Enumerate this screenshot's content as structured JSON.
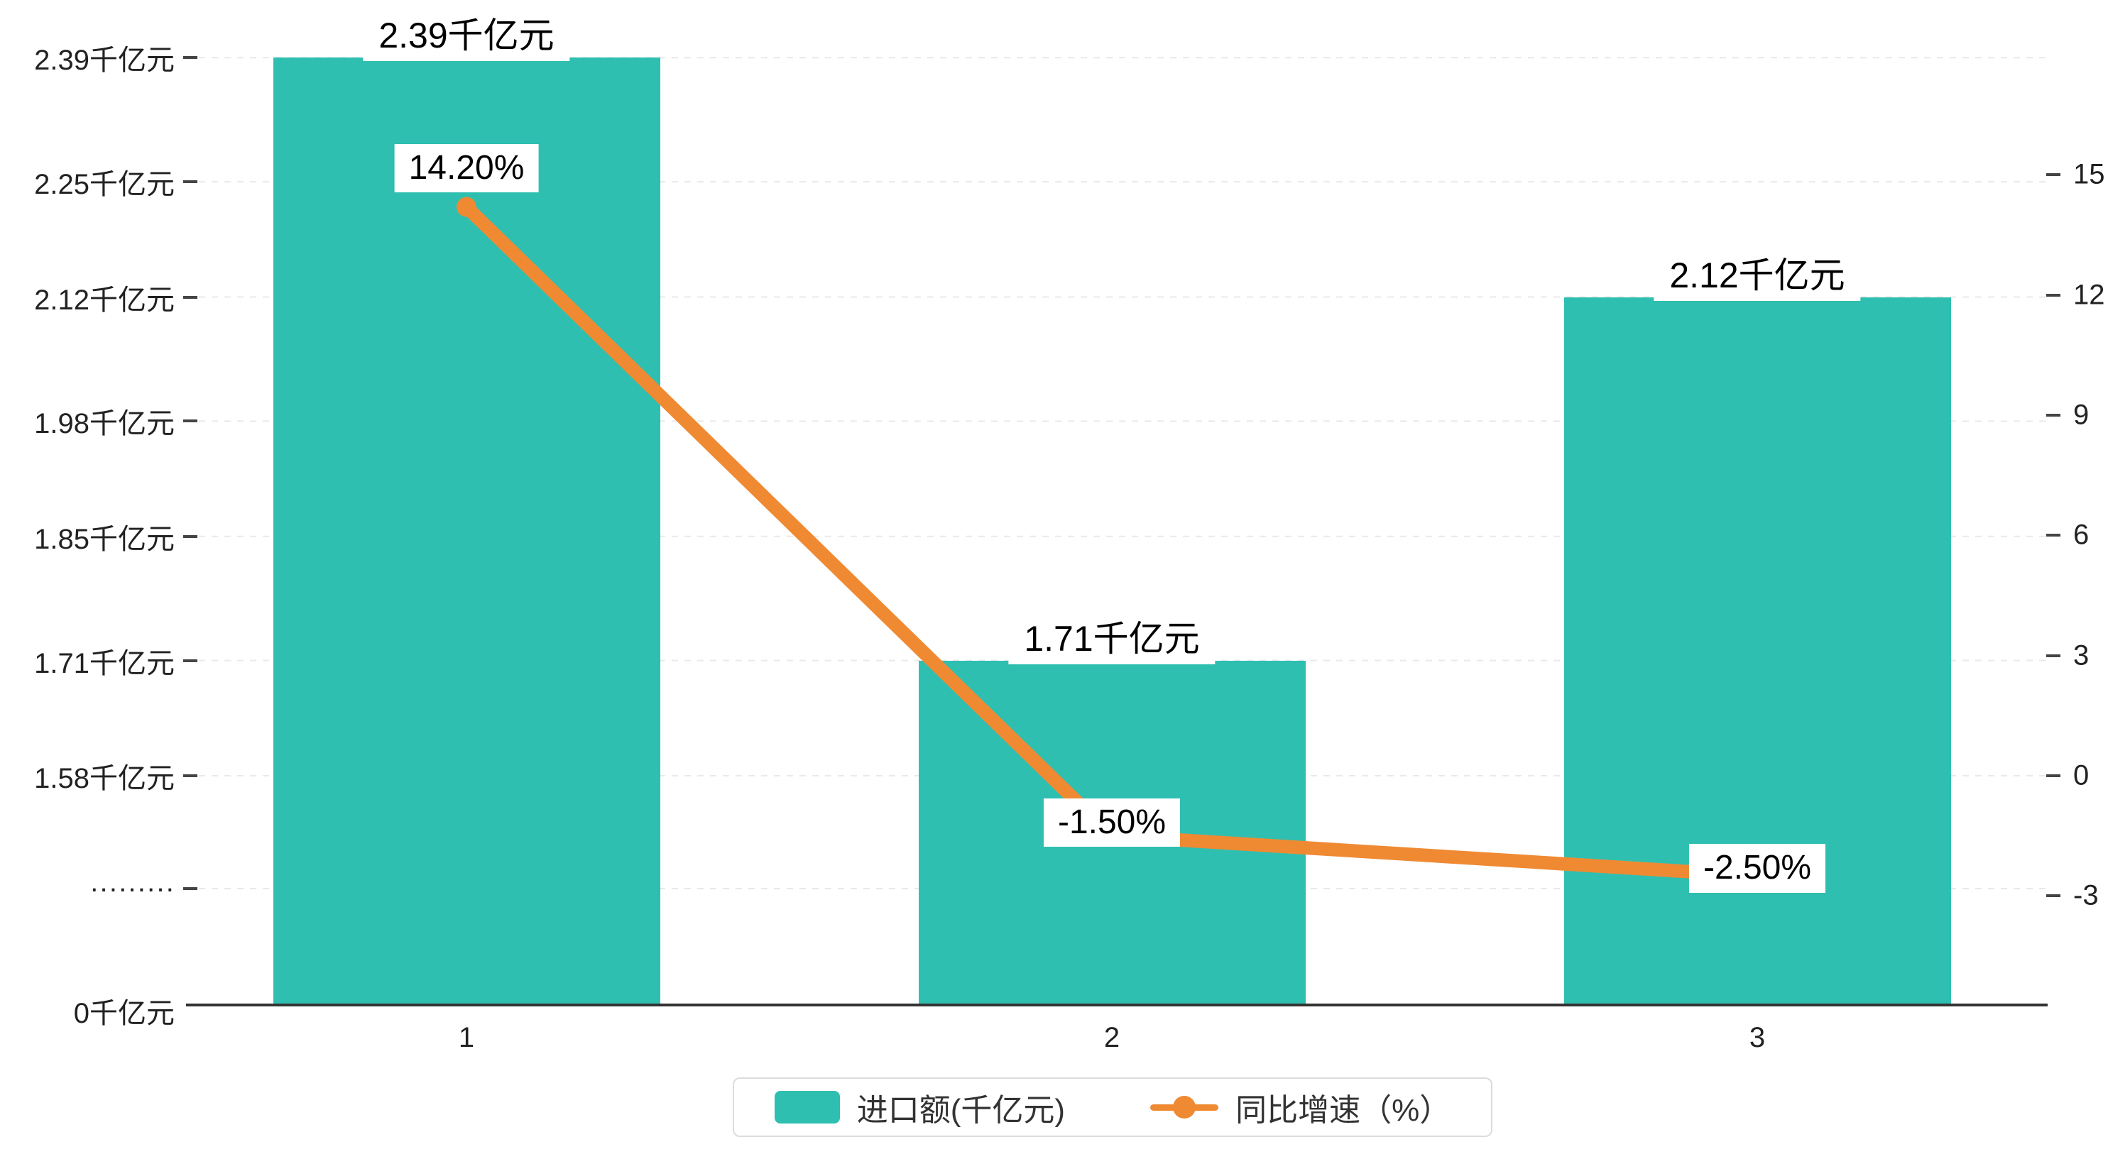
{
  "chart_data": {
    "type": "bar+line",
    "categories": [
      "1",
      "2",
      "3"
    ],
    "series": [
      {
        "name": "进口额(千亿元)",
        "type": "bar",
        "axis": "left",
        "values": [
          2.39,
          1.71,
          2.12
        ],
        "labels": [
          "2.39千亿元",
          "1.71千亿元",
          "2.12千亿元"
        ],
        "color": "#2fbfb0"
      },
      {
        "name": "同比增速（%）",
        "type": "line",
        "axis": "right",
        "values": [
          14.2,
          -1.5,
          -2.5
        ],
        "labels": [
          "14.20%",
          "-1.50%",
          "-2.50%"
        ],
        "color": "#ef8a33"
      }
    ],
    "left_axis": {
      "tick_labels": [
        "2.39千亿元",
        "2.25千亿元",
        "2.12千亿元",
        "1.98千亿元",
        "1.85千亿元",
        "1.71千亿元",
        "1.58千亿元"
      ],
      "tick_values": [
        2.39,
        2.25,
        2.12,
        1.98,
        1.85,
        1.71,
        1.58
      ],
      "break_label": "·········",
      "zero_label": "0千亿元",
      "axis_break": true
    },
    "right_axis": {
      "tick_labels": [
        "15",
        "12",
        "9",
        "6",
        "3",
        "0",
        "-3"
      ],
      "tick_values": [
        15,
        12,
        9,
        6,
        3,
        0,
        -3
      ],
      "min": -3,
      "max": 15
    },
    "grid": "dashed horizontal lines",
    "legend_position": "bottom-center"
  },
  "colors": {
    "bar": "#2fbfb0",
    "line": "#ef8a33",
    "grid": "#e9e9e9",
    "axis": "#333333",
    "text": "#222222",
    "label_bg": "#ffffff"
  }
}
